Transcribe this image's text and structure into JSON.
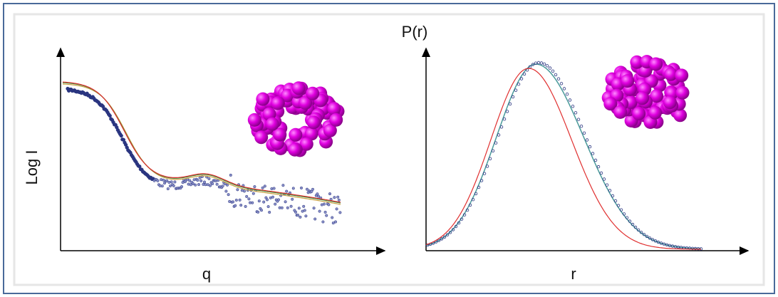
{
  "left_panel": {
    "y_axis_label": "Log I",
    "x_axis_label": "q"
  },
  "right_panel": {
    "y_axis_label": "P(r)",
    "x_axis_label": "r"
  }
}
